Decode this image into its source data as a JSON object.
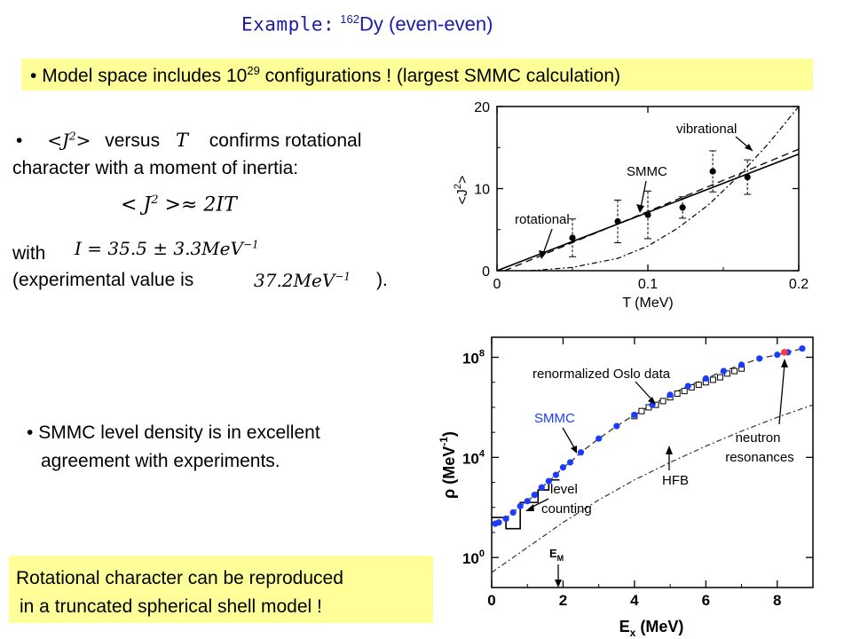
{
  "header": {
    "title_label": "Example",
    "title_colon": ":",
    "title_sup": "162",
    "title_rest": "Dy (even-even)"
  },
  "banner": {
    "bullet": "•",
    "pre": "Model space includes 10",
    "sup": "29",
    "post": " configurations ! (largest SMMC calculation)"
  },
  "left_text": {
    "bullet": "•",
    "j2_expr": "<J",
    "j2_sup": "2",
    "j2_close": ">",
    "versus": "versus",
    "T_var": "T",
    "confirms": "confirms rotational",
    "line2": "character with a moment of inertia:",
    "formula_lhs": "< J",
    "formula_sup": "2",
    "formula_rhs": " >≈ 2IT",
    "with": "with",
    "inertia_value": "I = 35.5 ± 3.3MeV",
    "inertia_exp": "−1",
    "exp_pre": "(experimental value is",
    "exp_value": "37.2MeV",
    "exp_exp": "−1",
    "exp_post": ")."
  },
  "level_density_text": {
    "bullet": "•",
    "line1": "SMMC level density is in excellent",
    "line2": "agreement with experiments."
  },
  "rotational_box": {
    "line1": "Rotational character can be reproduced",
    "line2": "in a truncated spherical shell model !"
  },
  "colors": {
    "title": "#1a1aa6",
    "highlight": "#ffff99",
    "smmc_points": "#1a3cff",
    "neutron_point": "#ff3b3b"
  },
  "chart_data": [
    {
      "type": "scatter",
      "title": "",
      "xlabel": "T (MeV)",
      "ylabel": "<J²>",
      "xlim": [
        0,
        0.2
      ],
      "ylim": [
        0,
        20
      ],
      "x_ticks": [
        "0",
        "0.1",
        "0.2"
      ],
      "y_ticks": [
        "0",
        "10",
        "20"
      ],
      "ylabel_parts": {
        "open": "<J",
        "sup": "2",
        "close": ">"
      },
      "series": [
        {
          "name": "SMMC",
          "x": [
            0.05,
            0.08,
            0.1,
            0.123,
            0.143,
            0.166
          ],
          "y": [
            4,
            6,
            6.8,
            7.7,
            12.1,
            11.4
          ],
          "err": [
            2.3,
            2.6,
            2.9,
            1.3,
            2.5,
            2.1
          ]
        },
        {
          "name": "rotational",
          "x": [
            0,
            0.2
          ],
          "y": [
            0,
            14.2
          ]
        },
        {
          "name": "",
          "x": [
            0.005,
            0.2
          ],
          "y": [
            0,
            14.8
          ]
        },
        {
          "name": "vibrational",
          "x": [
            0.022,
            0.05,
            0.08,
            0.1,
            0.12,
            0.14,
            0.16,
            0.18,
            0.2
          ],
          "y": [
            0,
            0.4,
            1.5,
            3,
            5.2,
            8,
            11.5,
            15.5,
            20
          ]
        }
      ],
      "annotations": [
        "vibrational",
        "SMMC",
        "rotational"
      ]
    },
    {
      "type": "line",
      "title": "",
      "xlabel": "E_x (MeV)",
      "xlabel_parts": {
        "main": "E",
        "sub": "x",
        "unit": " (MeV)"
      },
      "ylabel": "ρ (MeV⁻¹)",
      "ylabel_parts": {
        "main": "ρ (MeV",
        "sup": "-1",
        "close": ")"
      },
      "xlim": [
        0,
        9
      ],
      "ylim_log10": [
        -1.2,
        8.8
      ],
      "x_ticks": [
        "0",
        "2",
        "4",
        "6",
        "8"
      ],
      "y_ticks": [
        {
          "base": "10",
          "exp": "0"
        },
        {
          "base": "10",
          "exp": "4"
        },
        {
          "base": "10",
          "exp": "8"
        }
      ],
      "series": [
        {
          "name": "SMMC",
          "x": [
            0.1,
            0.2,
            0.4,
            0.6,
            0.8,
            1.0,
            1.2,
            1.4,
            1.6,
            1.8,
            2.0,
            2.2,
            2.5,
            3.0,
            3.5,
            4.0,
            4.5,
            5.0,
            5.5,
            6.0,
            6.5,
            7.0,
            7.5,
            8.0,
            8.3,
            8.7
          ],
          "log10_y": [
            1.35,
            1.4,
            1.55,
            1.8,
            2.05,
            2.25,
            2.5,
            2.8,
            3.05,
            3.3,
            3.6,
            3.8,
            4.2,
            4.75,
            5.25,
            5.7,
            6.1,
            6.5,
            6.85,
            7.15,
            7.45,
            7.7,
            7.95,
            8.1,
            8.2,
            8.35
          ]
        },
        {
          "name": "HFB",
          "x": [
            0,
            1,
            2,
            3,
            4,
            5,
            6,
            7,
            8,
            9
          ],
          "log10_y": [
            -0.6,
            0.4,
            1.4,
            2.3,
            3.1,
            3.8,
            4.45,
            5.05,
            5.6,
            6.1
          ]
        },
        {
          "name": "renormalized Oslo data",
          "x": [
            4.0,
            4.2,
            4.4,
            4.6,
            4.8,
            5.0,
            5.2,
            5.4,
            5.6,
            5.8,
            6.0,
            6.2,
            6.4,
            6.6,
            6.8,
            7.0
          ],
          "log10_y": [
            5.65,
            5.85,
            6.0,
            6.1,
            6.25,
            6.4,
            6.55,
            6.65,
            6.8,
            6.9,
            7.0,
            7.1,
            7.2,
            7.35,
            7.45,
            7.55
          ]
        },
        {
          "name": "level counting",
          "x": [
            0,
            0.4,
            0.4,
            0.8,
            0.8,
            1.3,
            1.3,
            1.6,
            1.6,
            1.9
          ],
          "log10_y": [
            1.6,
            1.6,
            1.15,
            1.15,
            2.2,
            2.2,
            2.7,
            2.7,
            3.1,
            3.1
          ]
        },
        {
          "name": "neutron resonances",
          "x": [
            8.2
          ],
          "log10_y": [
            8.2
          ]
        }
      ],
      "annotations": [
        "renormalized Oslo data",
        "SMMC",
        "neutron",
        "resonances",
        "level",
        "counting",
        "HFB",
        "E",
        "M"
      ]
    }
  ]
}
